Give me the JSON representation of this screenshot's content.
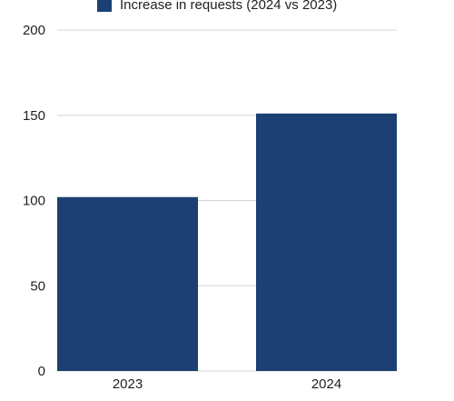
{
  "chart_data": {
    "type": "bar",
    "title": "",
    "xlabel": "",
    "ylabel": "",
    "categories": [
      "2023",
      "2024"
    ],
    "series": [
      {
        "name": "Increase in requests (2024 vs 2023)",
        "values": [
          102,
          151
        ],
        "color": "#1c3f74"
      }
    ],
    "ylim": [
      0,
      200
    ],
    "yticks": [
      "0",
      "50",
      "100",
      "150",
      "200"
    ],
    "grid": true,
    "legend_position": "top"
  },
  "colors": {
    "bar": "#1c3f74",
    "grid": "#d4d4d4",
    "text": "#222222"
  }
}
